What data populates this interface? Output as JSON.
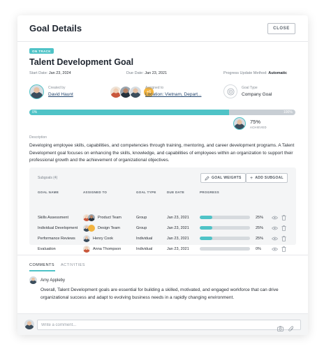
{
  "header": {
    "title": "Goal Details",
    "close_label": "CLOSE"
  },
  "goal": {
    "status": "ON TRACK",
    "name": "Talent Development Goal",
    "start_label": "Start Date:",
    "start_date": "Jan 23, 2024",
    "due_label": "Due Date:",
    "due_date": "Jan 23, 2021",
    "method_label": "Progress Update Method:",
    "method": "Automatic"
  },
  "info": {
    "created_label": "Created by",
    "created_by": "David Haunt",
    "assigned_label": "Assigned to",
    "assigned_to": "Location: Vietnam, Depart...",
    "assigned_extra": "+6",
    "type_label": "Goal Type",
    "type": "Company Goal"
  },
  "progress": {
    "value": 75,
    "start_label": "0%",
    "end_label": "100%",
    "achieved_value": "75%",
    "achieved_label": "ACHIEVED"
  },
  "description": {
    "label": "Description",
    "text": "Developing employee skills, capabilities, and competencies through training, mentoring, and career development programs. A Talent Development goal focuses on enhancing the skills, knowledge, and capabilities of employees within an organization to support their professional growth and the achievement of organizational objectives."
  },
  "subgoals": {
    "title": "Subgoals (4)",
    "weights_label": "GOAL WEIGHTS",
    "add_label": "ADD SUBGOAL",
    "columns": [
      "GOAL NAME",
      "ASSIGNED TO",
      "GOAL TYPE",
      "DUE DATE",
      "PROGRESS"
    ],
    "rows": [
      {
        "name": "Skills Assessment",
        "assignee": "Product Team",
        "type": "Group",
        "due": "Jan 23, 2021",
        "progress": 25,
        "progress_label": "25%"
      },
      {
        "name": "Individual Development",
        "assignee": "Design Team",
        "type": "Group",
        "due": "Jan 23, 2021",
        "progress": 25,
        "progress_label": "25%"
      },
      {
        "name": "Performance Reviews",
        "assignee": "Henry Cook",
        "type": "Individual",
        "due": "Jan 23, 2021",
        "progress": 25,
        "progress_label": "25%"
      },
      {
        "name": "Evaluation",
        "assignee": "Anna Thompson",
        "type": "Individual",
        "due": "Jan 23, 2021",
        "progress": 0,
        "progress_label": "0%"
      }
    ]
  },
  "tabs": [
    "COMMENTS",
    "ACTIVITIES"
  ],
  "comment": {
    "author": "Amy Appleby",
    "text": "Overall, Talent Development goals are essential for building a skilled, motivated, and engaged workforce that can drive organizational success and adapt to evolving business needs in a rapidly changing environment."
  },
  "footer": {
    "placeholder": "Write a comment..."
  },
  "colors": {
    "accent": "#4fc3c7",
    "track": "#c8ced4",
    "text": "#2a2f36"
  }
}
